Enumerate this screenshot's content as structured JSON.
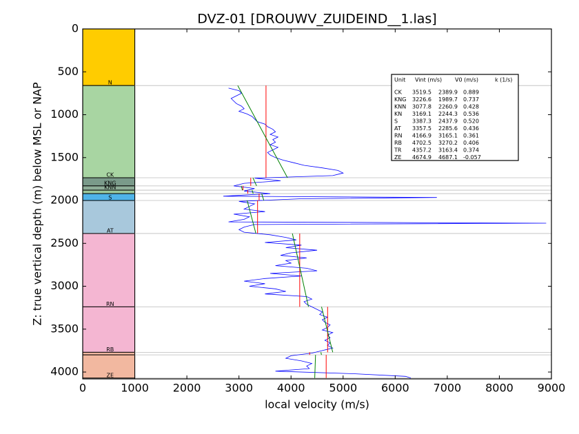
{
  "chart_data": {
    "type": "well-log",
    "title": "DVZ-01 [DROUWV_ZUIDEIND__1.las]",
    "x_label": "local velocity (m/s)",
    "y_label": "Z: true vertical depth (m) below MSL or NAP",
    "xlim": [
      0,
      9000
    ],
    "ylim": [
      4080,
      0
    ],
    "xticks": [
      0,
      1000,
      2000,
      3000,
      4000,
      5000,
      6000,
      7000,
      8000,
      9000
    ],
    "yticks": [
      0,
      500,
      1000,
      1500,
      2000,
      2500,
      3000,
      3500,
      4000
    ],
    "column_xlim": [
      0,
      1000
    ],
    "log_color": "#0000ff",
    "vint_color": "#ff0000",
    "trend_color": "#008000",
    "boundary_color": "#bbbbbb",
    "table_header": [
      "Unit",
      "Vint (m/s)",
      "V0 (m/s)",
      "k (1/s)"
    ],
    "units": [
      {
        "name": "N",
        "top": 0,
        "base": 660,
        "color": "#ffcc00",
        "show_label": true
      },
      {
        "name": "CK",
        "top": 660,
        "base": 1735,
        "color": "#a8d5a2",
        "show_label": true,
        "vint": 3519.5,
        "v0": 2389.9,
        "k": 0.889
      },
      {
        "name": "KNG",
        "top": 1735,
        "base": 1830,
        "color": "#7a9a8a",
        "show_label": true,
        "vint": 3226.6,
        "v0": 1989.7,
        "k": 0.737
      },
      {
        "name": "KNN",
        "top": 1830,
        "base": 1880,
        "color": "#8eae98",
        "show_label": true,
        "vint": 3077.8,
        "v0": 2260.9,
        "k": 0.428
      },
      {
        "name": "KN",
        "top": 1880,
        "base": 1920,
        "color": "#9cc89a",
        "show_label": false,
        "vint": 3169.1,
        "v0": 2244.3,
        "k": 0.536
      },
      {
        "name": "S",
        "top": 1920,
        "base": 2000,
        "color": "#4fb3e8",
        "show_label": true,
        "vint": 3387.3,
        "v0": 2437.9,
        "k": {
          "value": 0.52,
          "label": "0.520"
        }
      },
      {
        "name": "AT",
        "top": 2000,
        "base": 2385,
        "color": "#a8c8dc",
        "show_label": true,
        "vint": 3357.5,
        "v0": 2285.6,
        "k": 0.436
      },
      {
        "name": "RN",
        "top": 2385,
        "base": 3240,
        "color": "#f4b6d2",
        "show_label": true,
        "vint": 4166.9,
        "v0": 3165.1,
        "k": 0.361
      },
      {
        "name": "RB",
        "top": 3240,
        "base": 3770,
        "color": "#f4b6d2",
        "show_label": true,
        "vint": 4702.5,
        "v0": 3270.2,
        "k": 0.406
      },
      {
        "name": "TR",
        "top": 3770,
        "base": 3800,
        "color": "#f2b8a0",
        "show_label": false,
        "vint": 4357.2,
        "v0": 3163.4,
        "k": 0.374
      },
      {
        "name": "ZE",
        "top": 3800,
        "base": 4070,
        "color": "#f2b8a0",
        "show_label": true,
        "vint": 4674.9,
        "v0": 4687.1,
        "k": -0.057
      }
    ],
    "log": {
      "depth": [
        690,
        720,
        750,
        780,
        810,
        840,
        870,
        900,
        930,
        960,
        990,
        1020,
        1050,
        1080,
        1110,
        1140,
        1170,
        1200,
        1230,
        1260,
        1290,
        1320,
        1350,
        1380,
        1410,
        1440,
        1470,
        1500,
        1530,
        1560,
        1590,
        1620,
        1650,
        1680,
        1710,
        1740,
        1770,
        1800,
        1830,
        1860,
        1890,
        1920,
        1950,
        1965,
        1980,
        2010,
        2040,
        2070,
        2100,
        2130,
        2160,
        2190,
        2220,
        2250,
        2265,
        2280,
        2310,
        2340,
        2370,
        2400,
        2430,
        2460,
        2490,
        2520,
        2550,
        2580,
        2610,
        2640,
        2670,
        2700,
        2730,
        2760,
        2790,
        2820,
        2850,
        2880,
        2910,
        2940,
        2970,
        3000,
        3030,
        3060,
        3090,
        3120,
        3150,
        3180,
        3210,
        3240,
        3270,
        3300,
        3330,
        3360,
        3390,
        3420,
        3450,
        3480,
        3510,
        3540,
        3570,
        3600,
        3630,
        3660,
        3690,
        3720,
        3750,
        3780,
        3810,
        3840,
        3870,
        3900,
        3930,
        3960,
        3990,
        4020,
        4050,
        4070
      ],
      "velocity": [
        2800,
        3000,
        3050,
        2950,
        2850,
        2900,
        2950,
        3050,
        3100,
        3000,
        3150,
        3250,
        3300,
        3350,
        3500,
        3550,
        3650,
        3700,
        3600,
        3750,
        3650,
        3700,
        3600,
        3750,
        3650,
        3550,
        3600,
        3700,
        3850,
        4050,
        4250,
        4600,
        4900,
        5000,
        4800,
        3300,
        3800,
        3100,
        2900,
        3300,
        3100,
        3600,
        2700,
        6800,
        4200,
        3000,
        3300,
        3200,
        3100,
        3500,
        2900,
        3200,
        3100,
        2800,
        8900,
        3300,
        3100,
        3000,
        3100,
        3600,
        3900,
        4100,
        3500,
        4200,
        3900,
        4500,
        4000,
        3800,
        4300,
        3900,
        4000,
        3700,
        4300,
        4500,
        3600,
        4200,
        3500,
        3100,
        3500,
        3200,
        3700,
        3900,
        3500,
        4300,
        4400,
        4250,
        4300,
        4400,
        4500,
        4600,
        4550,
        4700,
        4600,
        4650,
        4750,
        4700,
        4600,
        4800,
        4700,
        4750,
        4650,
        4750,
        4700,
        4800,
        4600,
        4400,
        4000,
        3900,
        4200,
        4400,
        4300,
        4350,
        3700,
        5200,
        6200,
        6300
      ]
    }
  }
}
